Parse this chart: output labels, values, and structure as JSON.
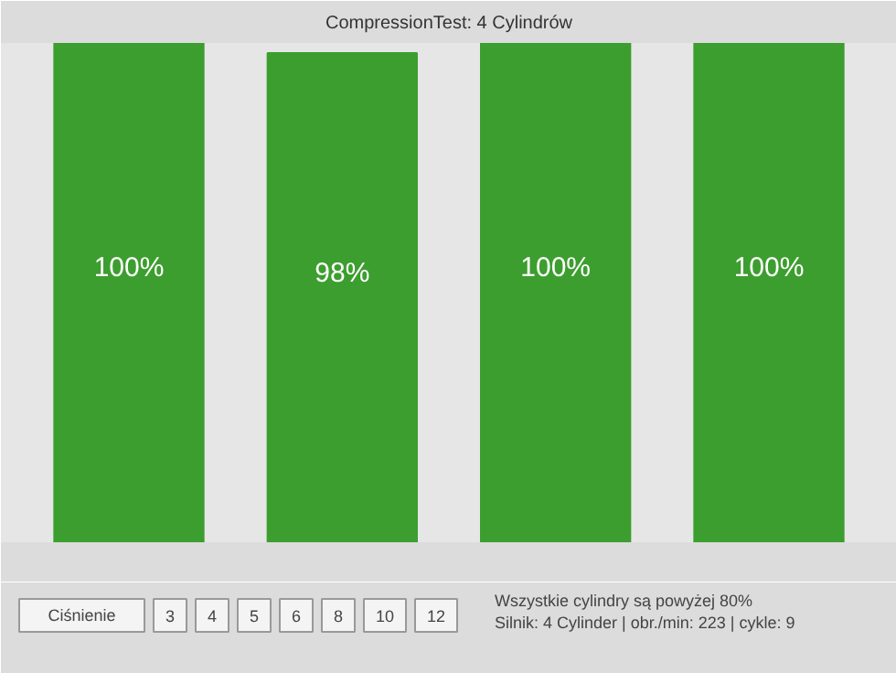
{
  "chart_data": {
    "type": "bar",
    "title": "CompressionTest: 4 Cylindrów",
    "categories": [
      null,
      null,
      null,
      null
    ],
    "values": [
      100,
      98,
      100,
      100
    ],
    "color": "#3c9e2e",
    "data_labels": true,
    "value_labels": [
      "100%",
      "98%",
      "100%",
      "100%"
    ],
    "annotations": [
      "Ciśnienie",
      "3",
      "4",
      "5",
      "6",
      "8",
      "10",
      "12",
      "Wszystkie cylindry są powyżej 80%",
      "Silnik: 4 Cylinder | obr./min: 223 | cykle: 9"
    ]
  }
}
